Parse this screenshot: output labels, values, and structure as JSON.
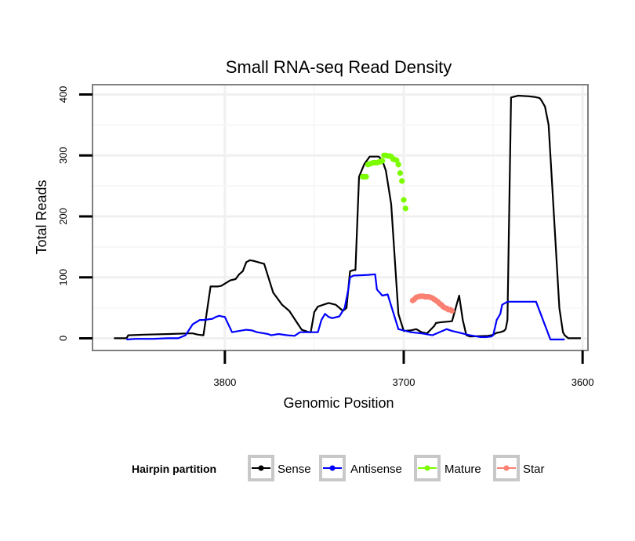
{
  "chart_data": {
    "type": "line",
    "title": "Small RNA-seq Read Density",
    "xlabel": "Genomic Position",
    "ylabel": "Total Reads",
    "x_reversed": true,
    "xlim": [
      3874,
      3597
    ],
    "ylim": [
      -20,
      416
    ],
    "x_ticks": [
      3800,
      3700,
      3600
    ],
    "y_ticks": [
      0,
      100,
      200,
      300,
      400
    ],
    "grid": true,
    "legend": {
      "title": "Hairpin partition",
      "position": "bottom",
      "entries": [
        {
          "name": "Sense",
          "color": "#000000"
        },
        {
          "name": "Antisense",
          "color": "#0000ff"
        },
        {
          "name": "Mature",
          "color": "#7cfc00"
        },
        {
          "name": "Star",
          "color": "#fa8072"
        }
      ]
    },
    "series": [
      {
        "name": "Sense",
        "style": "line",
        "color": "#000000",
        "x": [
          3862,
          3855,
          3854,
          3845,
          3831,
          3820,
          3818,
          3815,
          3812,
          3808,
          3806,
          3804,
          3802,
          3797,
          3794,
          3792,
          3790,
          3788,
          3786,
          3784,
          3778,
          3773,
          3768,
          3764,
          3757,
          3753,
          3752,
          3750,
          3748,
          3744,
          3742,
          3738,
          3736,
          3734,
          3732,
          3730,
          3728,
          3727,
          3725,
          3722,
          3719,
          3714,
          3712,
          3710,
          3707,
          3703,
          3700,
          3696,
          3693,
          3690,
          3687,
          3683,
          3682,
          3680,
          3673,
          3669,
          3667,
          3665,
          3663,
          3653,
          3651,
          3650,
          3648,
          3646,
          3644,
          3643,
          3642,
          3640,
          3636,
          3630,
          3627,
          3624,
          3623,
          3621,
          3619,
          3617,
          3613,
          3611,
          3610,
          3608,
          3604,
          3601
        ],
        "y": [
          0,
          0,
          5,
          6,
          7,
          8,
          8,
          6,
          5,
          85,
          85,
          85,
          86,
          95,
          97,
          105,
          110,
          125,
          128,
          127,
          122,
          75,
          55,
          45,
          14,
          10,
          10,
          43,
          52,
          56,
          58,
          55,
          50,
          45,
          50,
          110,
          112,
          112,
          265,
          286,
          298,
          298,
          292,
          275,
          220,
          40,
          12,
          13,
          15,
          10,
          8,
          20,
          25,
          26,
          28,
          70,
          30,
          5,
          3,
          4,
          5,
          6,
          9,
          10,
          12,
          15,
          30,
          395,
          398,
          397,
          396,
          394,
          390,
          380,
          350,
          250,
          50,
          10,
          5,
          0,
          0,
          0
        ]
      },
      {
        "name": "Antisense",
        "style": "line",
        "color": "#0000ff",
        "x": [
          3855,
          3850,
          3840,
          3832,
          3826,
          3822,
          3818,
          3814,
          3812,
          3807,
          3805,
          3803,
          3802,
          3800,
          3796,
          3792,
          3788,
          3785,
          3782,
          3778,
          3776,
          3774,
          3770,
          3765,
          3761,
          3758,
          3753,
          3748,
          3746,
          3744,
          3742,
          3740,
          3736,
          3733,
          3731,
          3730,
          3728,
          3727,
          3720,
          3716,
          3715,
          3712,
          3709,
          3703,
          3696,
          3690,
          3684,
          3676,
          3673,
          3670,
          3663,
          3657,
          3654,
          3651,
          3650,
          3648,
          3646,
          3645,
          3642,
          3630,
          3627,
          3626,
          3618,
          3612,
          3610
        ],
        "y": [
          -2,
          -1,
          -1,
          0,
          0,
          5,
          23,
          30,
          30,
          32,
          35,
          37,
          36,
          35,
          10,
          12,
          14,
          13,
          10,
          8,
          7,
          5,
          7,
          5,
          4,
          10,
          10,
          10,
          30,
          40,
          35,
          33,
          36,
          50,
          80,
          100,
          103,
          103,
          104,
          105,
          80,
          70,
          72,
          15,
          10,
          8,
          5,
          15,
          12,
          10,
          5,
          2,
          2,
          3,
          5,
          30,
          40,
          55,
          60,
          60,
          60,
          60,
          -2,
          -2,
          -2
        ]
      },
      {
        "name": "Mature",
        "style": "points",
        "color": "#7cfc00",
        "x": [
          3723,
          3722,
          3721,
          3720,
          3719,
          3718,
          3717,
          3716,
          3715,
          3714,
          3713,
          3712,
          3711,
          3710,
          3709,
          3708,
          3707,
          3706,
          3705,
          3704,
          3703,
          3702,
          3701,
          3700,
          3699
        ],
        "y": [
          265,
          265,
          265,
          285,
          286,
          287,
          288,
          288,
          288,
          289,
          290,
          291,
          300,
          300,
          299,
          299,
          298,
          294,
          293,
          292,
          285,
          271,
          258,
          227,
          213
        ]
      },
      {
        "name": "Star",
        "style": "points",
        "color": "#fa8072",
        "x": [
          3695,
          3694,
          3693,
          3692,
          3691,
          3690,
          3689,
          3688,
          3687,
          3686,
          3685,
          3684,
          3683,
          3682,
          3681,
          3680,
          3679,
          3678,
          3677,
          3676,
          3675,
          3674,
          3673
        ],
        "y": [
          62,
          64,
          67,
          68,
          69,
          69,
          69,
          68,
          68,
          68,
          67,
          66,
          64,
          62,
          60,
          57,
          55,
          52,
          50,
          49,
          47,
          47,
          45
        ]
      }
    ]
  }
}
